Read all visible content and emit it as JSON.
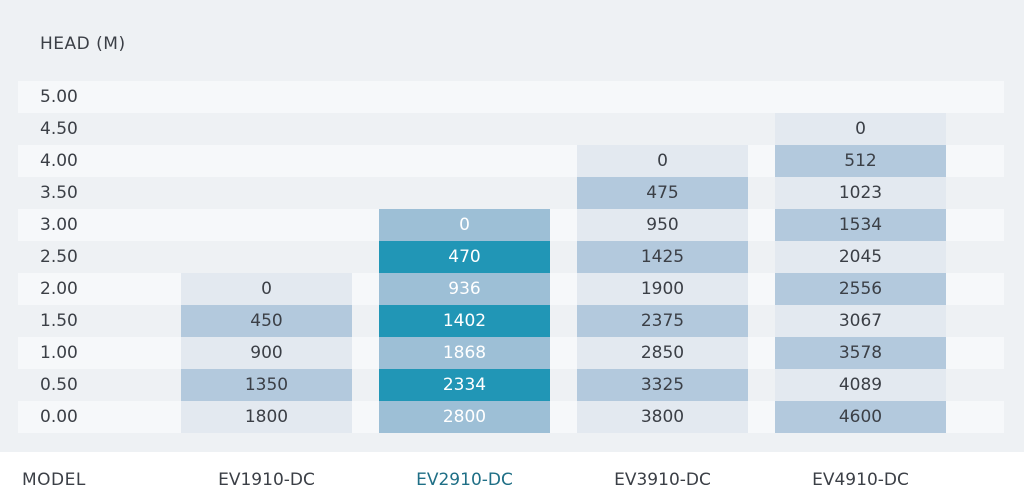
{
  "chart_data": {
    "type": "table",
    "ylabel": "HEAD (M)",
    "xlabel": "MODEL",
    "y_ticks": [
      "5.00",
      "4.50",
      "4.00",
      "3.50",
      "3.00",
      "2.50",
      "2.00",
      "1.50",
      "1.00",
      "0.50",
      "0.00"
    ],
    "highlight_model": "EV2910-DC",
    "colors": {
      "light_cell": "#e3e9f0",
      "mid_cell": "#b3c9dd",
      "highlight_light": "#9dbfd6",
      "highlight_dark": "#2196b6",
      "text": "#3b3f46",
      "highlight_label": "#1f6f86"
    },
    "series": [
      {
        "model": "EV1910-DC",
        "heads": [
          "2.00",
          "1.50",
          "1.00",
          "0.50",
          "0.00"
        ],
        "values": [
          "0",
          "450",
          "900",
          "1350",
          "1800"
        ]
      },
      {
        "model": "EV2910-DC",
        "heads": [
          "3.00",
          "2.50",
          "2.00",
          "1.50",
          "1.00",
          "0.50",
          "0.00"
        ],
        "values": [
          "0",
          "470",
          "936",
          "1402",
          "1868",
          "2334",
          "2800"
        ]
      },
      {
        "model": "EV3910-DC",
        "heads": [
          "4.00",
          "3.50",
          "3.00",
          "2.50",
          "2.00",
          "1.50",
          "1.00",
          "0.50",
          "0.00"
        ],
        "values": [
          "0",
          "475",
          "950",
          "1425",
          "1900",
          "2375",
          "2850",
          "3325",
          "3800"
        ]
      },
      {
        "model": "EV4910-DC",
        "heads": [
          "4.50",
          "4.00",
          "3.50",
          "3.00",
          "2.50",
          "2.00",
          "1.50",
          "1.00",
          "0.50",
          "0.00"
        ],
        "values": [
          "0",
          "512",
          "1023",
          "1534",
          "2045",
          "2556",
          "3067",
          "3578",
          "4089",
          "4600"
        ]
      }
    ]
  }
}
